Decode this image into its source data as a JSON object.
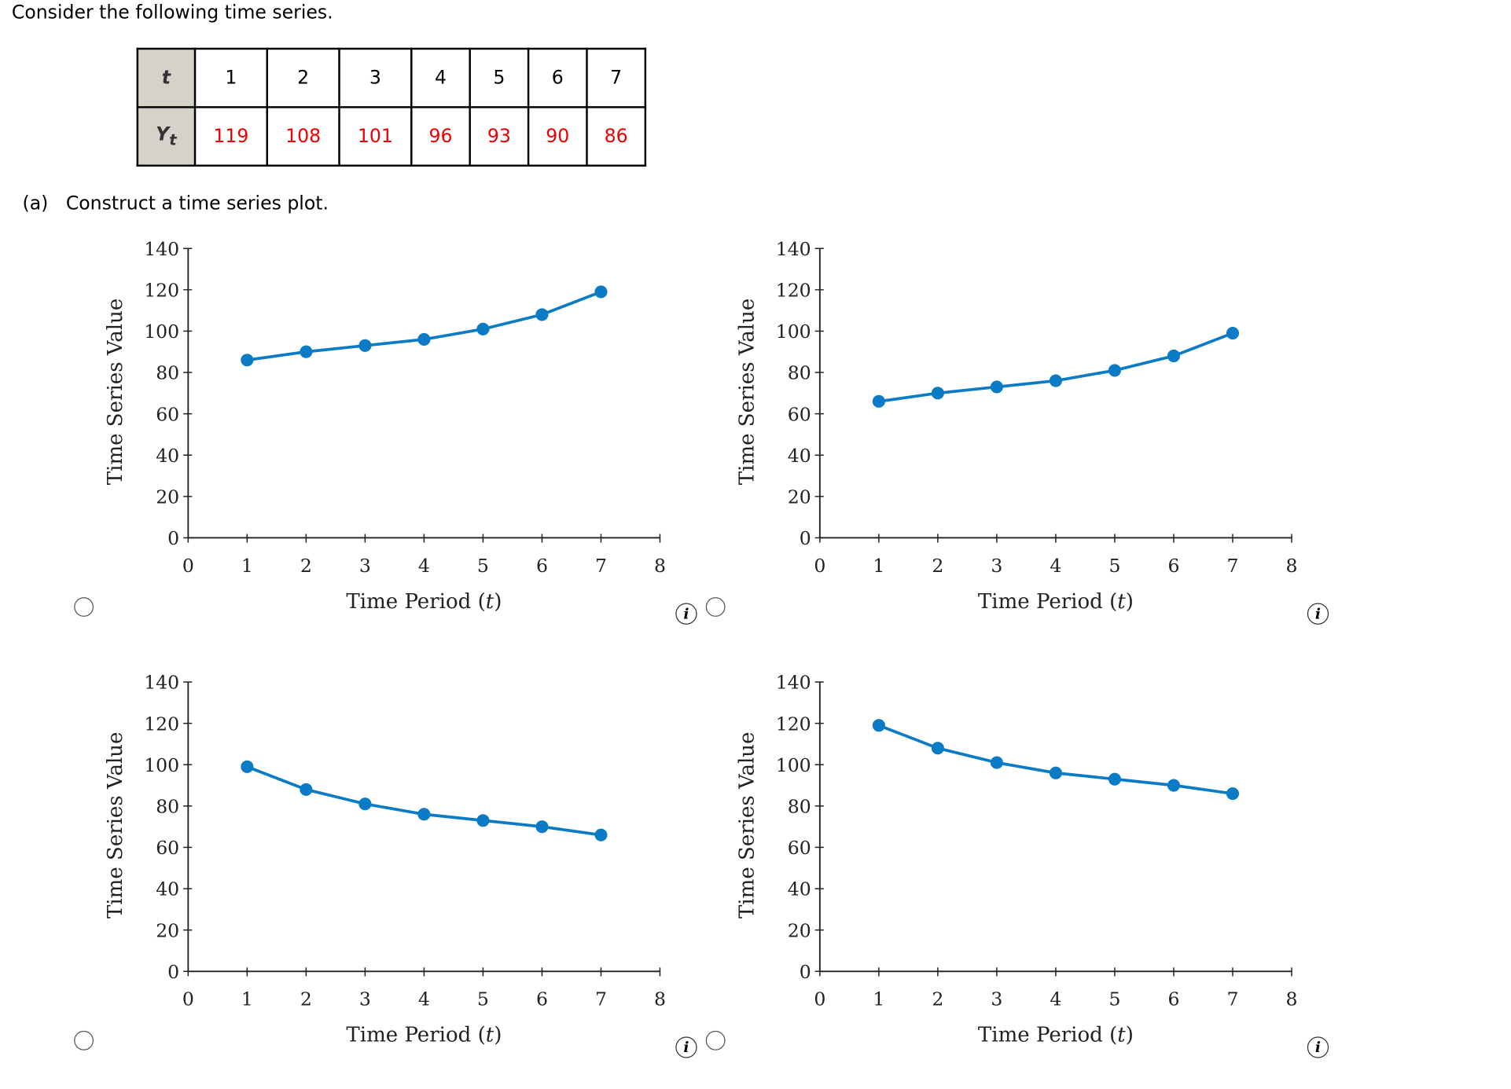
{
  "prompt": "Consider the following time series.",
  "table": {
    "row_headers": [
      "t",
      "Y",
      "t"
    ],
    "t": [
      "1",
      "2",
      "3",
      "4",
      "5",
      "6",
      "7"
    ],
    "y": [
      "119",
      "108",
      "101",
      "96",
      "93",
      "90",
      "86"
    ]
  },
  "part_a": {
    "label": "(a)",
    "text": "Construct a time series plot."
  },
  "info_icon_glyph": "i",
  "chart_data": [
    {
      "type": "line",
      "x": [
        1,
        2,
        3,
        4,
        5,
        6,
        7
      ],
      "y": [
        86,
        90,
        93,
        96,
        101,
        108,
        119
      ],
      "xlabel_main": "Time Period (",
      "xlabel_var": "t",
      "xlabel_end": ")",
      "ylabel": "Time Series Value",
      "xlim": [
        0,
        8
      ],
      "ylim": [
        0,
        140
      ],
      "xticks": [
        "0",
        "1",
        "2",
        "3",
        "4",
        "5",
        "6",
        "7",
        "8"
      ],
      "yticks": [
        "0",
        "20",
        "40",
        "60",
        "80",
        "100",
        "120",
        "140"
      ],
      "color": "#0a7bc4"
    },
    {
      "type": "line",
      "x": [
        1,
        2,
        3,
        4,
        5,
        6,
        7
      ],
      "y": [
        66,
        70,
        73,
        76,
        81,
        88,
        99
      ],
      "xlabel_main": "Time Period (",
      "xlabel_var": "t",
      "xlabel_end": ")",
      "ylabel": "Time Series Value",
      "xlim": [
        0,
        8
      ],
      "ylim": [
        0,
        140
      ],
      "xticks": [
        "0",
        "1",
        "2",
        "3",
        "4",
        "5",
        "6",
        "7",
        "8"
      ],
      "yticks": [
        "0",
        "20",
        "40",
        "60",
        "80",
        "100",
        "120",
        "140"
      ],
      "color": "#0a7bc4"
    },
    {
      "type": "line",
      "x": [
        1,
        2,
        3,
        4,
        5,
        6,
        7
      ],
      "y": [
        99,
        88,
        81,
        76,
        73,
        70,
        66
      ],
      "xlabel_main": "Time Period (",
      "xlabel_var": "t",
      "xlabel_end": ")",
      "ylabel": "Time Series Value",
      "xlim": [
        0,
        8
      ],
      "ylim": [
        0,
        140
      ],
      "xticks": [
        "0",
        "1",
        "2",
        "3",
        "4",
        "5",
        "6",
        "7",
        "8"
      ],
      "yticks": [
        "0",
        "20",
        "40",
        "60",
        "80",
        "100",
        "120",
        "140"
      ],
      "color": "#0a7bc4"
    },
    {
      "type": "line",
      "x": [
        1,
        2,
        3,
        4,
        5,
        6,
        7
      ],
      "y": [
        119,
        108,
        101,
        96,
        93,
        90,
        86
      ],
      "xlabel_main": "Time Period (",
      "xlabel_var": "t",
      "xlabel_end": ")",
      "ylabel": "Time Series Value",
      "xlim": [
        0,
        8
      ],
      "ylim": [
        0,
        140
      ],
      "xticks": [
        "0",
        "1",
        "2",
        "3",
        "4",
        "5",
        "6",
        "7",
        "8"
      ],
      "yticks": [
        "0",
        "20",
        "40",
        "60",
        "80",
        "100",
        "120",
        "140"
      ],
      "color": "#0a7bc4"
    }
  ]
}
